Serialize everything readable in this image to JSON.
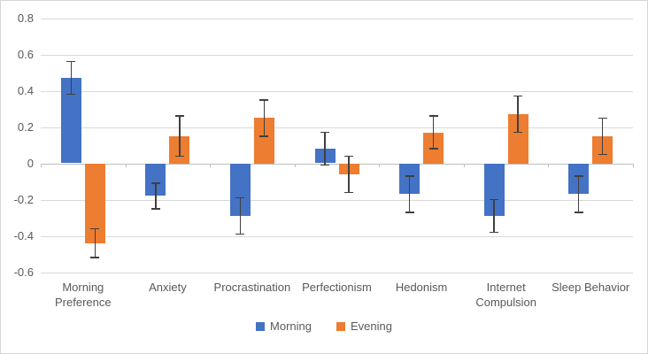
{
  "chart_data": {
    "type": "bar",
    "title": "",
    "categories": [
      "Morning Preference",
      "Anxiety",
      "Procrastination",
      "Perfectionism",
      "Hedonism",
      "Internet Compulsion",
      "Sleep Behavior"
    ],
    "series": [
      {
        "name": "Morning",
        "color": "#4472C4",
        "values": [
          0.47,
          -0.18,
          -0.29,
          0.08,
          -0.17,
          -0.29,
          -0.17
        ],
        "errors": [
          0.09,
          0.07,
          0.1,
          0.09,
          0.1,
          0.09,
          0.1
        ]
      },
      {
        "name": "Evening",
        "color": "#ED7D31",
        "values": [
          -0.44,
          0.15,
          0.25,
          -0.06,
          0.17,
          0.27,
          0.15
        ],
        "errors": [
          0.08,
          0.11,
          0.1,
          0.1,
          0.09,
          0.1,
          0.1
        ]
      }
    ],
    "ylim": [
      -0.6,
      0.8
    ],
    "yticks": [
      0.8,
      0.6,
      0.4,
      0.2,
      0,
      -0.2,
      -0.4,
      -0.6
    ],
    "ytick_labels": [
      "0.8",
      "0.6",
      "0.4",
      "0.2",
      "0",
      "-0.2",
      "-0.4",
      "-0.6"
    ],
    "grid": true,
    "error_bars": true,
    "legend_position": "bottom",
    "colors": {
      "gridline": "#D9D9D9",
      "axis": "#BFBFBF",
      "error_bar": "#404040",
      "label": "#595959",
      "background": "#FFFFFF",
      "border": "#D6D6D6"
    }
  }
}
